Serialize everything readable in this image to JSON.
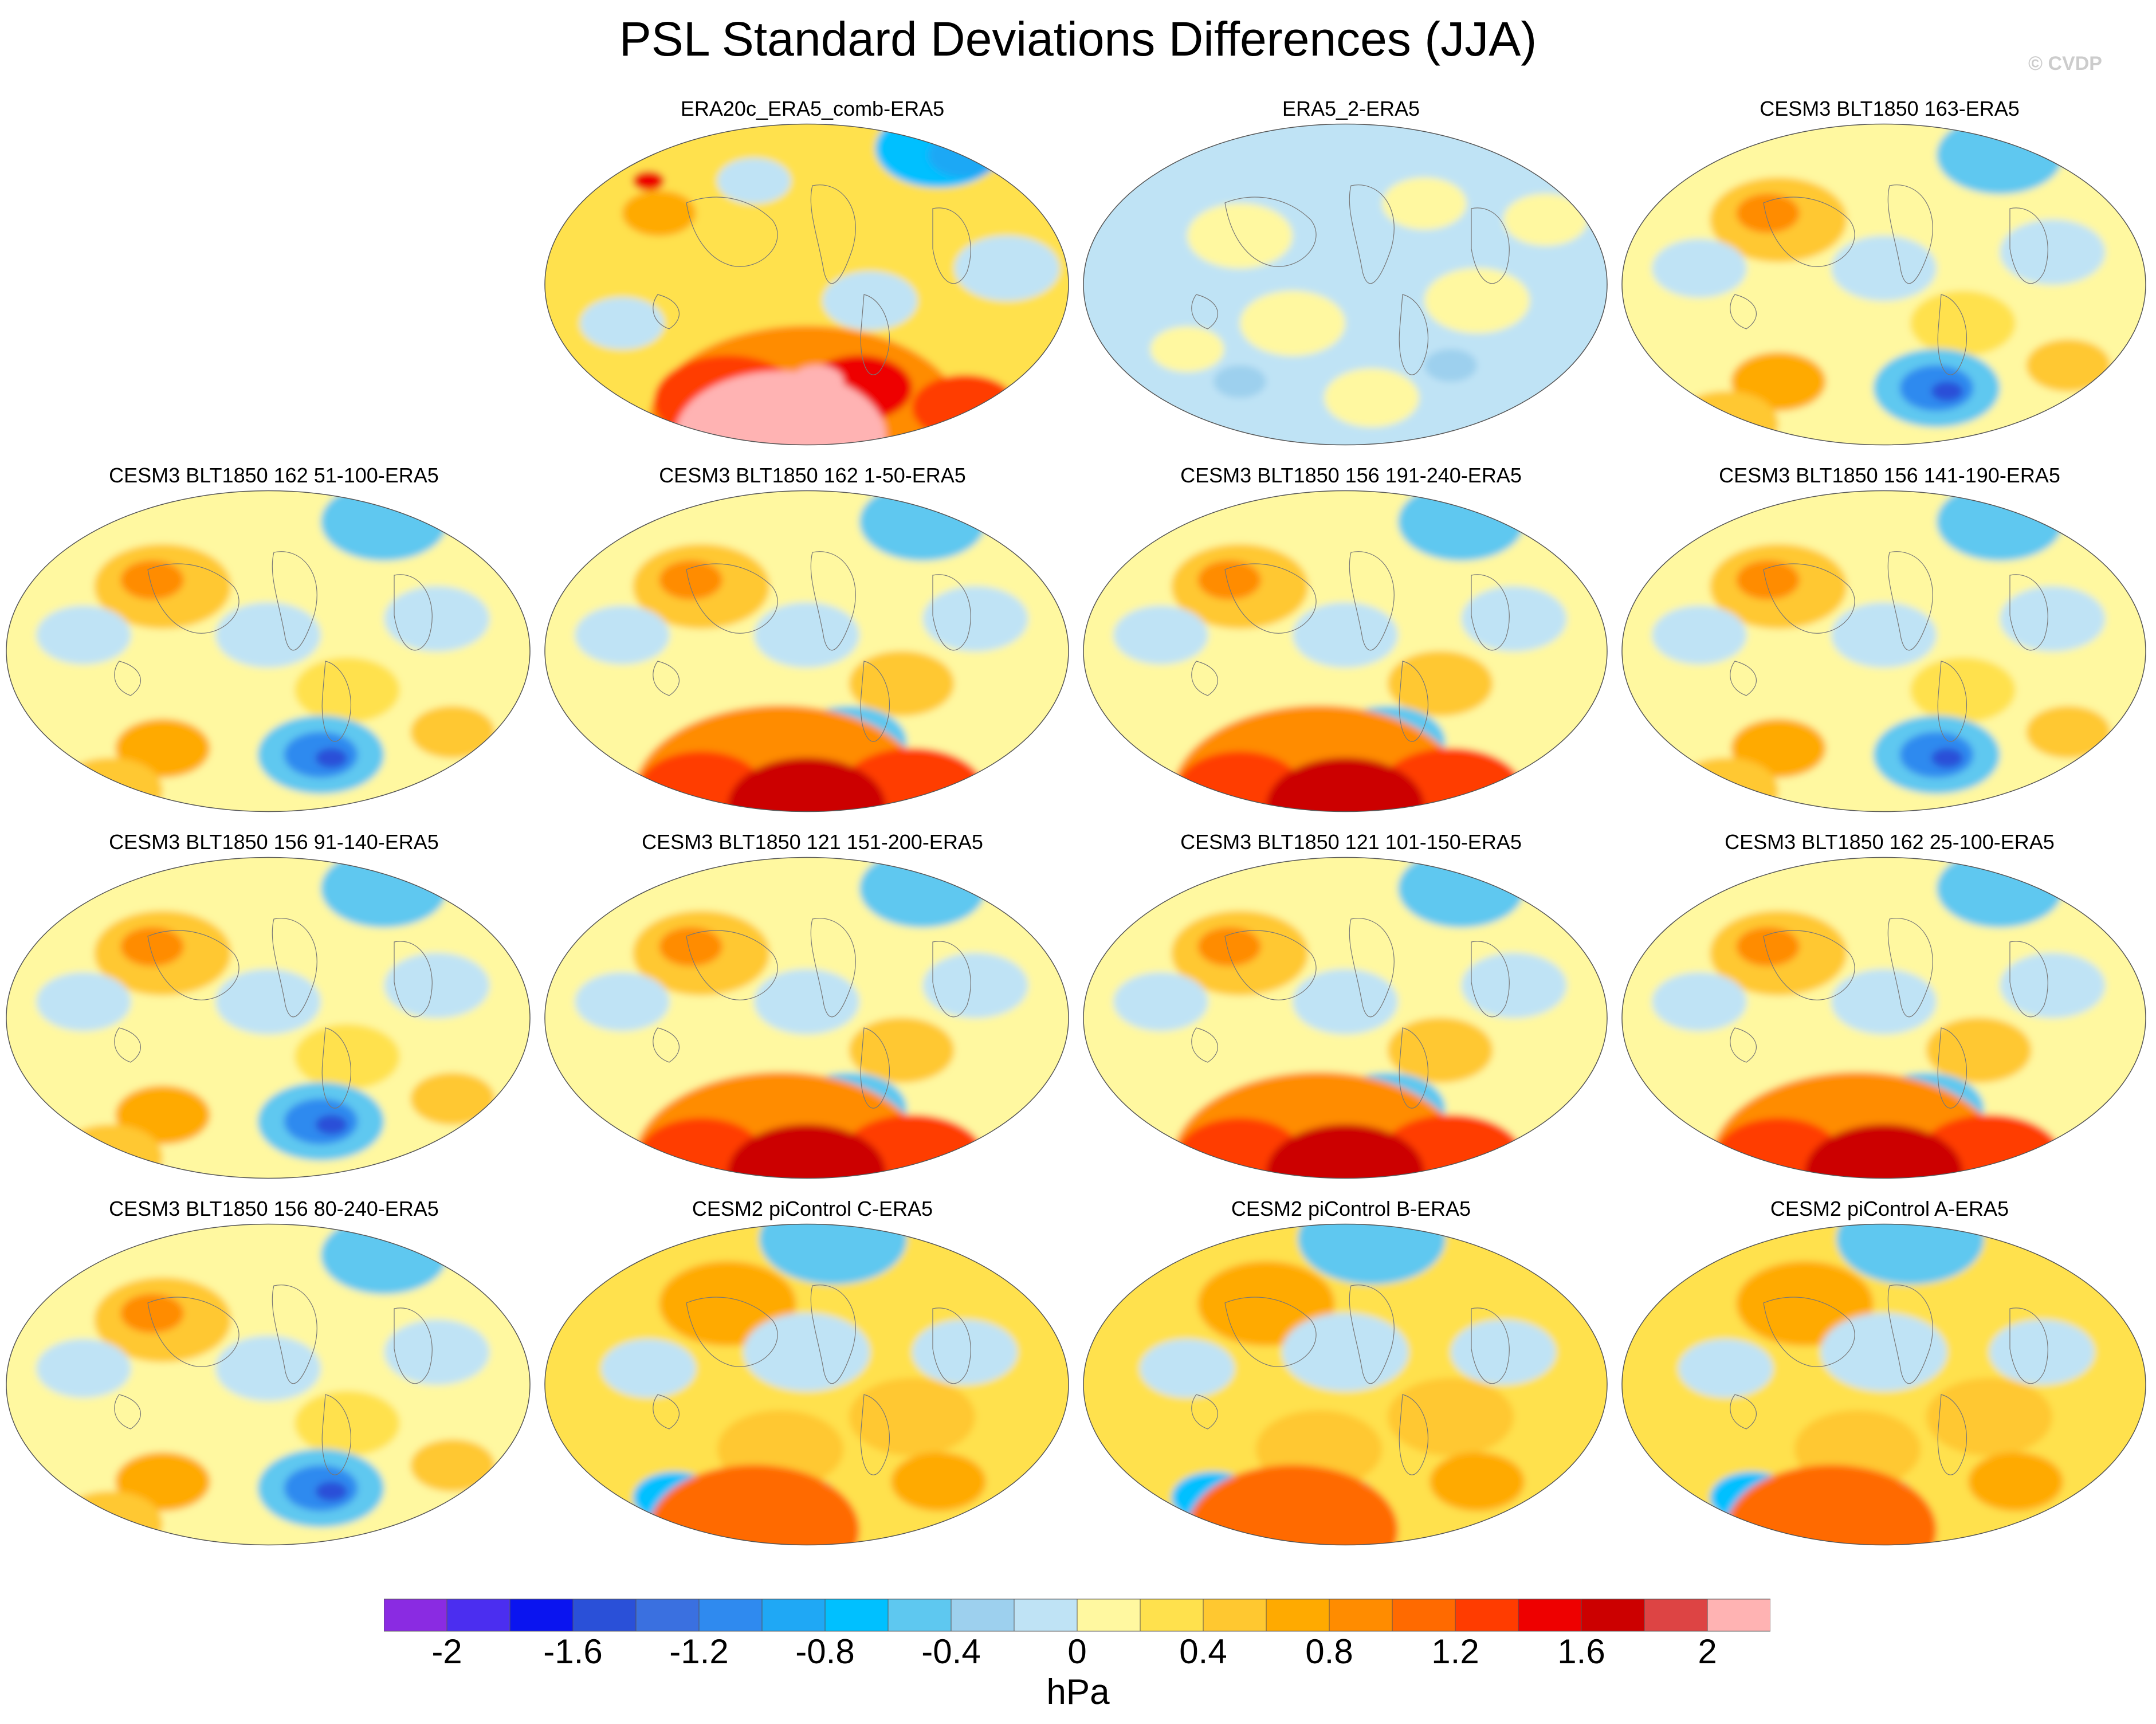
{
  "title": "PSL Standard Deviations Differences (JJA)",
  "credit": "© CVDP",
  "panels": [
    {
      "title": "ERA20c_ERA5_comb-ERA5",
      "pattern": "era20c"
    },
    {
      "title": "ERA5_2-ERA5",
      "pattern": "era5_2"
    },
    {
      "title": "CESM3 BLT1850 163-ERA5",
      "pattern": "cesm3"
    },
    {
      "title": "CESM3 BLT1850 162 51-100-ERA5",
      "pattern": "cesm3"
    },
    {
      "title": "CESM3 BLT1850 162 1-50-ERA5",
      "pattern": "cesm3_strong"
    },
    {
      "title": "CESM3 BLT1850 156 191-240-ERA5",
      "pattern": "cesm3_strong"
    },
    {
      "title": "CESM3 BLT1850 156 141-190-ERA5",
      "pattern": "cesm3"
    },
    {
      "title": "CESM3 BLT1850 156 91-140-ERA5",
      "pattern": "cesm3"
    },
    {
      "title": "CESM3 BLT1850 121 151-200-ERA5",
      "pattern": "cesm3_strong"
    },
    {
      "title": "CESM3 BLT1850 121 101-150-ERA5",
      "pattern": "cesm3_strong"
    },
    {
      "title": "CESM3 BLT1850 162 25-100-ERA5",
      "pattern": "cesm3_strong"
    },
    {
      "title": "CESM3 BLT1850 156 80-240-ERA5",
      "pattern": "cesm3"
    },
    {
      "title": "CESM2 piControl C-ERA5",
      "pattern": "cesm2"
    },
    {
      "title": "CESM2 piControl B-ERA5",
      "pattern": "cesm2"
    },
    {
      "title": "CESM2 piControl A-ERA5",
      "pattern": "cesm2"
    }
  ],
  "colorbar": {
    "colors": [
      "#8a2be2",
      "#4b2ef0",
      "#0a14f0",
      "#2a50d8",
      "#3a70e0",
      "#2f8aef",
      "#1fa8f5",
      "#00c0ff",
      "#5ec8f0",
      "#9dd0ee",
      "#bfe3f5",
      "#fff8a0",
      "#ffe14d",
      "#ffc830",
      "#ffaa00",
      "#ff8c00",
      "#ff6a00",
      "#ff3c00",
      "#ee0000",
      "#cc0000",
      "#dd4444",
      "#ffb3b3"
    ],
    "labels": [
      "-2",
      "-1.6",
      "-1.2",
      "-0.8",
      "-0.4",
      "0",
      "0.4",
      "0.8",
      "1.2",
      "1.6",
      "2"
    ],
    "unit": "hPa"
  }
}
